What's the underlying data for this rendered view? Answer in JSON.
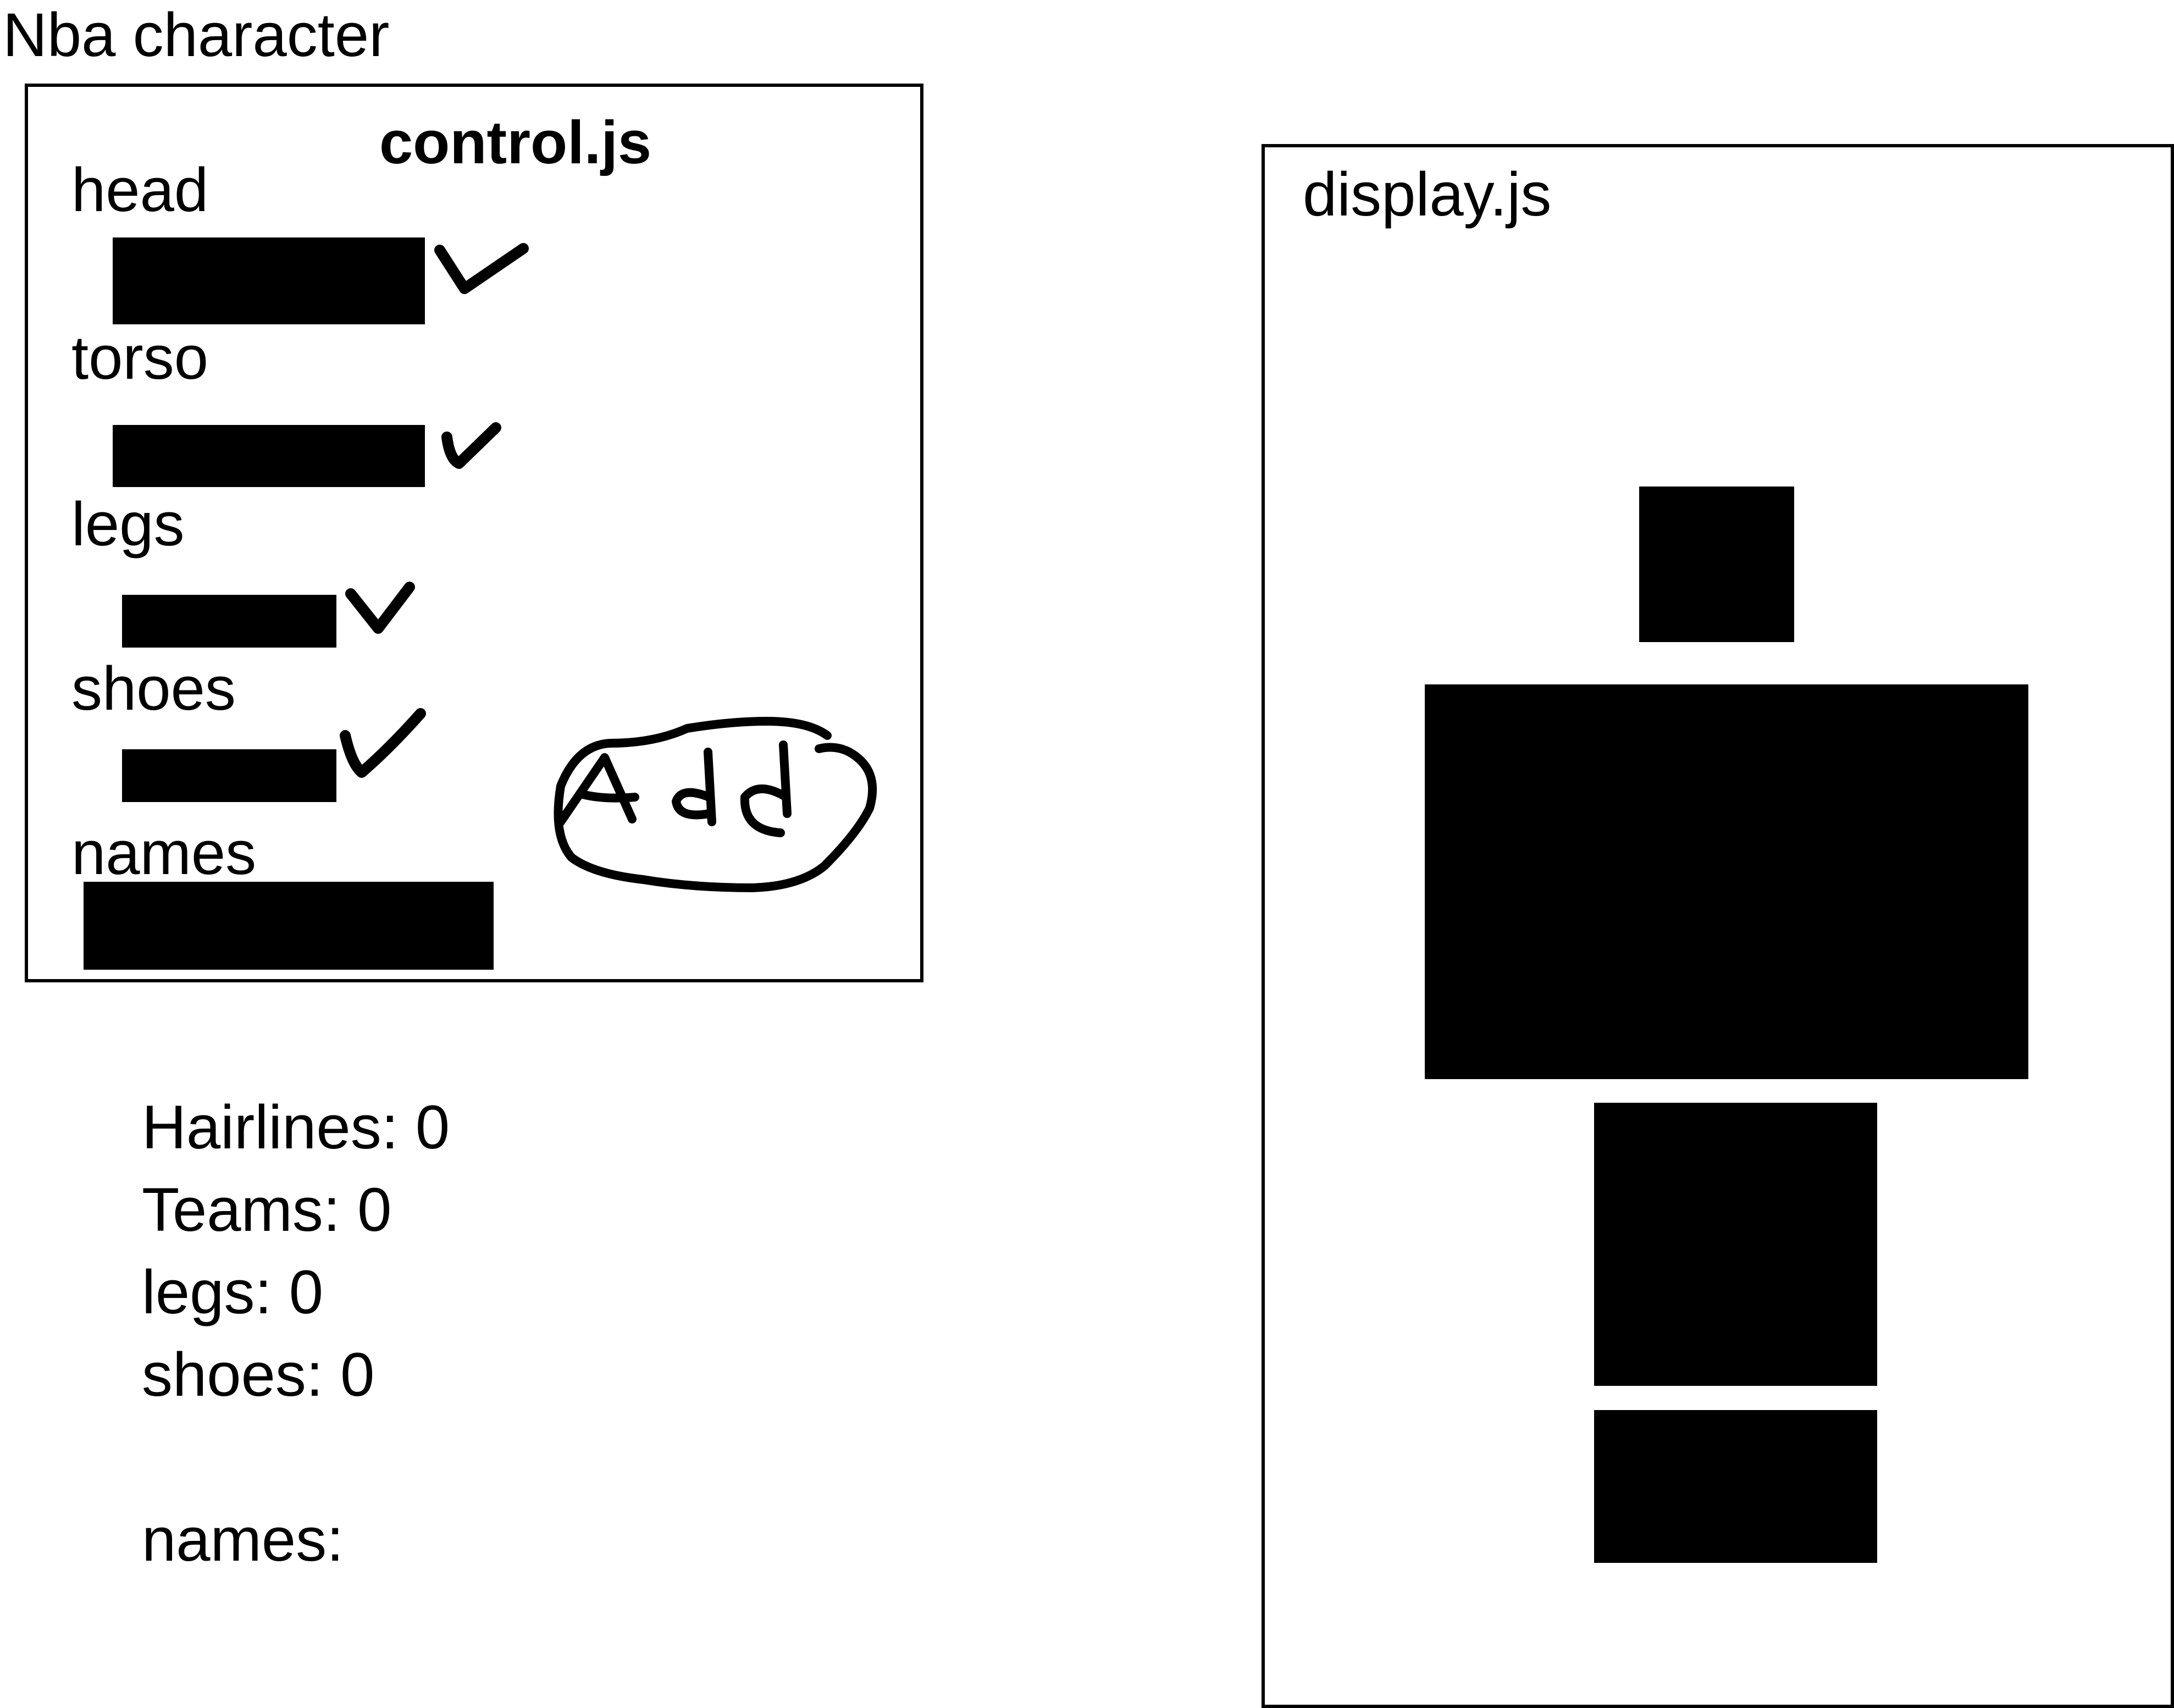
{
  "page": {
    "title": "Nba character"
  },
  "control_panel": {
    "title": "control.js",
    "fields": [
      {
        "label": "head",
        "checked": true
      },
      {
        "label": "torso",
        "checked": true
      },
      {
        "label": "legs",
        "checked": true
      },
      {
        "label": "shoes",
        "checked": true
      },
      {
        "label": "names",
        "checked": false
      }
    ],
    "add_button_label": "Add"
  },
  "stats": {
    "hairlines": "Hairlines: 0",
    "teams": "Teams: 0",
    "legs": "legs: 0",
    "shoes": "shoes: 0",
    "names": "names:"
  },
  "display_panel": {
    "title": "display.js",
    "figure_parts": [
      "head",
      "torso",
      "legs",
      "shoes"
    ]
  },
  "colors": {
    "ink": "#000000",
    "background": "#ffffff"
  }
}
